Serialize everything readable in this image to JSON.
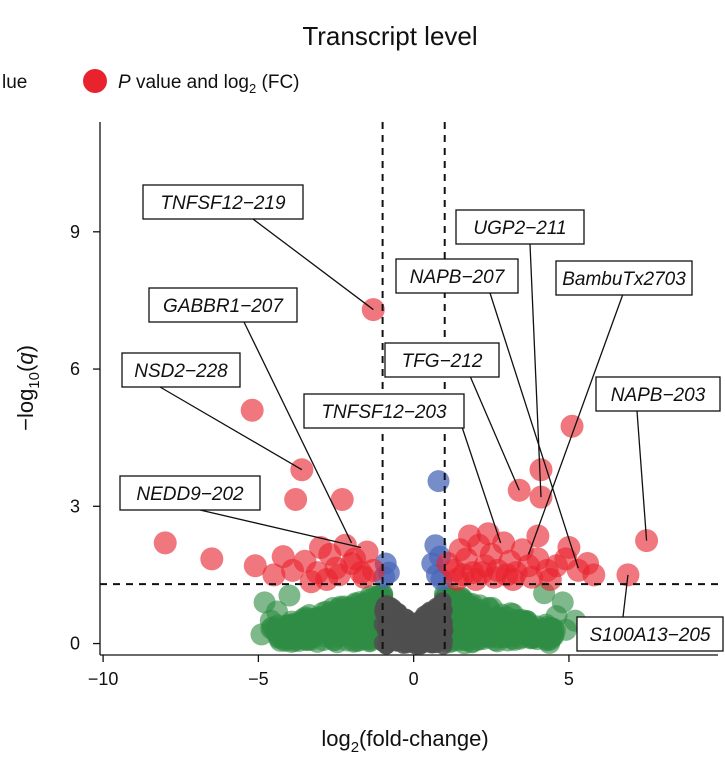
{
  "chart_data": {
    "type": "scatter",
    "title": "Transcript level",
    "xlabel_pre": "log",
    "xlabel_sub": "2",
    "xlabel_post": "(fold-change)",
    "ylabel_pre": "−log",
    "ylabel_sub": "10",
    "ylabel_open": "(",
    "ylabel_var": "q",
    "ylabel_close": ")",
    "xlim": [
      -10.1,
      9.8
    ],
    "ylim": [
      -0.25,
      11.4
    ],
    "xticks": [
      -10,
      -5,
      0,
      5
    ],
    "xtick_labels": [
      "−10",
      "−5",
      "0",
      "5"
    ],
    "yticks": [
      0,
      3,
      6,
      9
    ],
    "ytick_labels": [
      "0",
      "3",
      "6",
      "9"
    ],
    "fc_threshold": 1,
    "q_threshold": 1.3,
    "legend": [
      {
        "label_clipped": "lue",
        "color": "#e8232e"
      },
      {
        "label_pre": "P",
        "label_mid": " value and log",
        "label_sub": "2",
        "label_post": " (FC)",
        "color": "#e8232e"
      }
    ],
    "colors": {
      "red": "#e8232e",
      "blue": "#4a67b8",
      "green": "#2f8c43",
      "grey": "#4f4f4f"
    },
    "series": [
      {
        "name": "P value and log2 (FC)",
        "color": "#e8232e",
        "points": [
          [
            -1.3,
            7.3
          ],
          [
            -5.2,
            5.1
          ],
          [
            -3.6,
            3.8
          ],
          [
            -3.8,
            3.15
          ],
          [
            -2.3,
            3.15
          ],
          [
            -8,
            2.2
          ],
          [
            -6.5,
            1.85
          ],
          [
            -5.1,
            1.7
          ],
          [
            -4.2,
            1.9
          ],
          [
            -3.9,
            1.6
          ],
          [
            -3.5,
            1.8
          ],
          [
            -3.1,
            1.55
          ],
          [
            -2.7,
            1.95
          ],
          [
            -2.5,
            1.65
          ],
          [
            -2.2,
            2.15
          ],
          [
            -1.9,
            1.85
          ],
          [
            -1.7,
            1.55
          ],
          [
            -1.5,
            2.0
          ],
          [
            -1.3,
            1.6
          ],
          [
            -2.0,
            1.75
          ],
          [
            -3.0,
            2.1
          ],
          [
            -4.5,
            1.5
          ],
          [
            -2.8,
            1.4
          ],
          [
            -1.6,
            1.45
          ],
          [
            -3.3,
            1.35
          ],
          [
            -2.4,
            1.5
          ],
          [
            5.1,
            4.75
          ],
          [
            4.1,
            3.8
          ],
          [
            4.1,
            3.2
          ],
          [
            3.4,
            3.35
          ],
          [
            4.0,
            2.35
          ],
          [
            7.5,
            2.25
          ],
          [
            6.9,
            1.5
          ],
          [
            5.8,
            1.5
          ],
          [
            5.3,
            1.6
          ],
          [
            5.0,
            2.1
          ],
          [
            4.9,
            1.85
          ],
          [
            4.6,
            1.7
          ],
          [
            4.3,
            1.6
          ],
          [
            4.0,
            1.85
          ],
          [
            3.7,
            1.7
          ],
          [
            3.5,
            2.05
          ],
          [
            3.3,
            1.55
          ],
          [
            3.1,
            1.8
          ],
          [
            2.9,
            2.2
          ],
          [
            2.7,
            1.6
          ],
          [
            2.5,
            1.95
          ],
          [
            2.3,
            1.7
          ],
          [
            2.1,
            2.15
          ],
          [
            1.9,
            1.55
          ],
          [
            1.7,
            1.85
          ],
          [
            1.5,
            2.05
          ],
          [
            1.3,
            1.6
          ],
          [
            1.1,
            1.75
          ],
          [
            1.4,
            1.4
          ],
          [
            2.0,
            1.4
          ],
          [
            2.6,
            1.45
          ],
          [
            3.2,
            1.4
          ],
          [
            3.8,
            1.45
          ],
          [
            4.4,
            1.4
          ],
          [
            1.8,
            2.35
          ],
          [
            2.4,
            2.4
          ],
          [
            5.6,
            1.75
          ],
          [
            3.0,
            1.5
          ],
          [
            2.2,
            1.55
          ],
          [
            1.6,
            1.5
          ]
        ]
      },
      {
        "name": "P value",
        "color": "#4a67b8",
        "points": [
          [
            0.8,
            3.55
          ],
          [
            0.7,
            2.15
          ],
          [
            0.6,
            1.75
          ],
          [
            0.75,
            1.5
          ],
          [
            -0.9,
            1.75
          ],
          [
            -0.95,
            1.45
          ],
          [
            -0.8,
            1.55
          ],
          [
            0.85,
            1.9
          ],
          [
            0.9,
            1.4
          ]
        ]
      }
    ],
    "annotations": [
      {
        "text": "TNFSF12−219",
        "x": -1.3,
        "y": 7.3
      },
      {
        "text": "GABBR1−207",
        "x": -2.0,
        "y": 2.2
      },
      {
        "text": "NSD2−228",
        "x": -3.6,
        "y": 3.8
      },
      {
        "text": "NEDD9−202",
        "x": -1.7,
        "y": 2.1
      },
      {
        "text": "UGP2−211",
        "x": 4.1,
        "y": 3.2
      },
      {
        "text": "NAPB−207",
        "x": 5.3,
        "y": 1.65
      },
      {
        "text": "BambuTx2703",
        "x": 3.7,
        "y": 1.95
      },
      {
        "text": "TFG−212",
        "x": 3.4,
        "y": 3.35
      },
      {
        "text": "TNFSF12−203",
        "x": 2.8,
        "y": 2.2
      },
      {
        "text": "NAPB−203",
        "x": 7.5,
        "y": 2.25
      },
      {
        "text": "S100A13−205",
        "x": 6.9,
        "y": 1.5
      }
    ]
  }
}
